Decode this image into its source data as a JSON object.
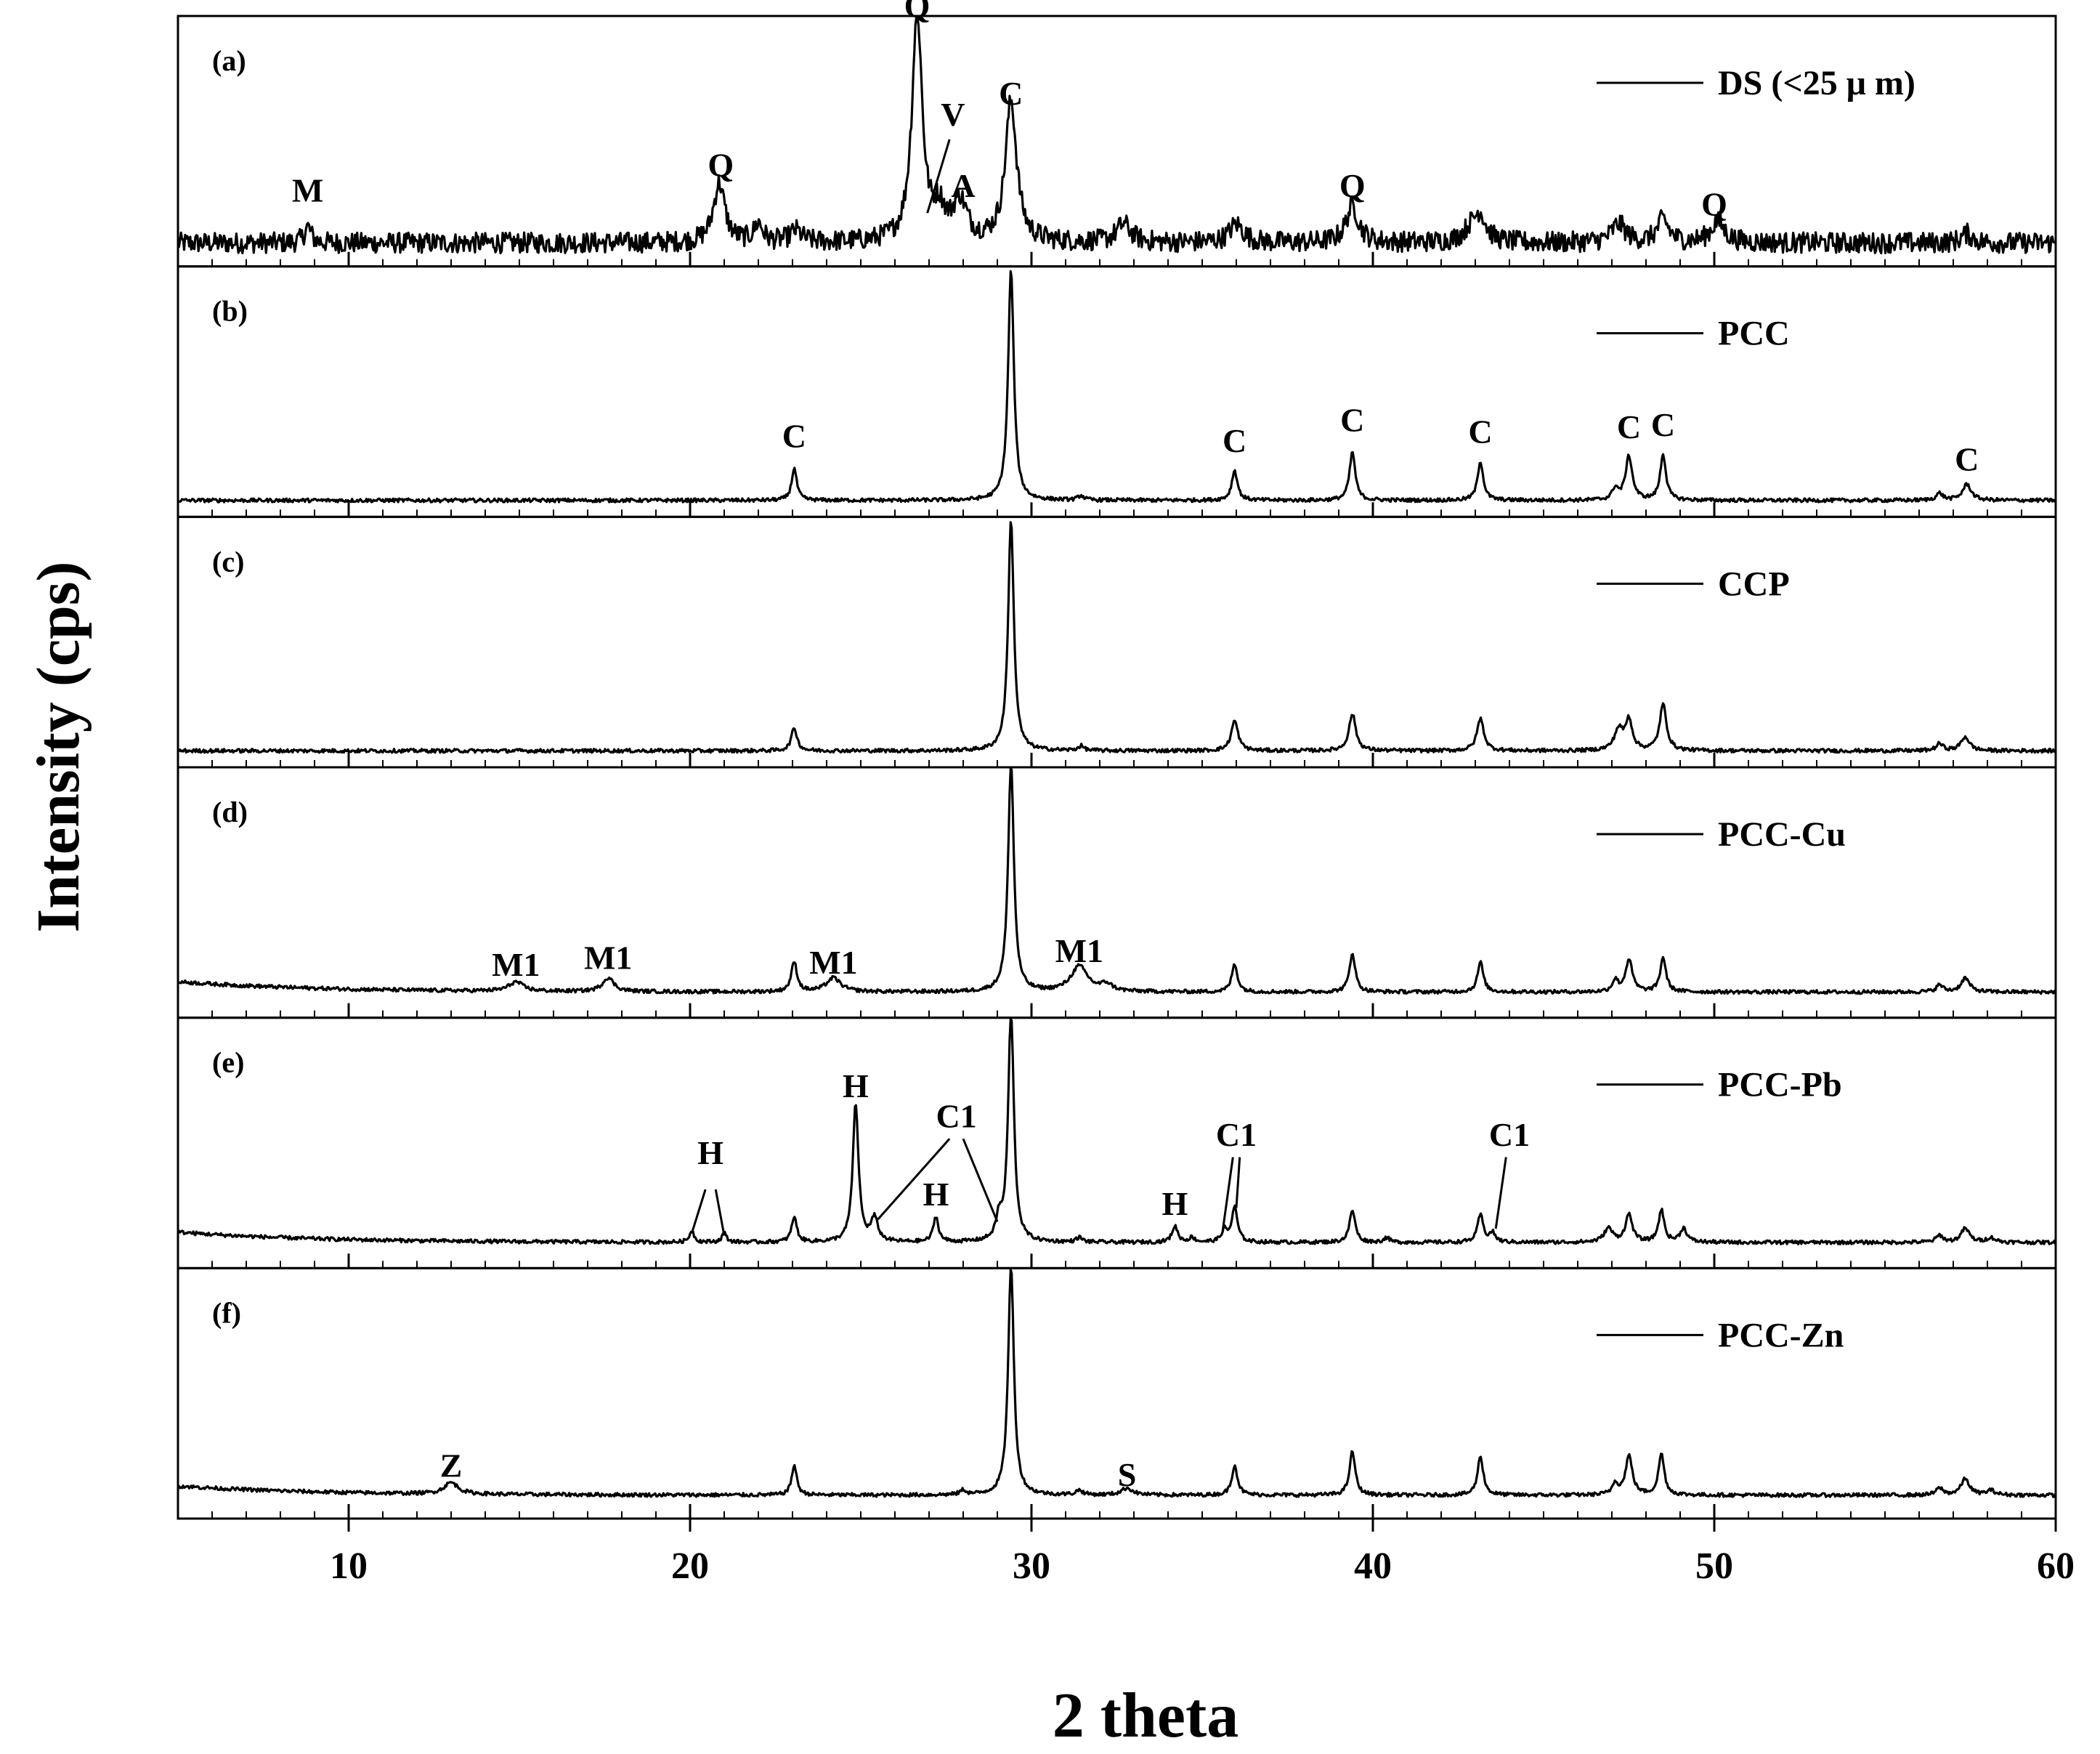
{
  "chart_data": {
    "type": "line",
    "xlabel": "2 theta",
    "ylabel": "Intensity (cps)",
    "xlim": [
      5,
      60
    ],
    "x_ticks": [
      "10",
      "20",
      "30",
      "40",
      "50",
      "60"
    ],
    "x_tick_values": [
      10,
      20,
      30,
      40,
      50,
      60
    ],
    "minor_x_step": 1,
    "legend_position": "top-right",
    "grid": false,
    "line_color": "#000000",
    "panels": [
      {
        "letter": "(a)",
        "name": "DS (<25 μ m)",
        "noise": 0.045,
        "baseline": [
          0.07,
          0.0
        ],
        "peaks": [
          [
            8.8,
            0.07,
            0.12
          ],
          [
            20.85,
            0.26,
            0.2
          ],
          [
            22.0,
            0.08,
            0.15
          ],
          [
            23.1,
            0.05,
            0.2
          ],
          [
            26.65,
            1.0,
            0.18
          ],
          [
            27.3,
            0.12,
            0.2
          ],
          [
            27.9,
            0.17,
            0.25
          ],
          [
            29.4,
            0.61,
            0.2
          ],
          [
            32.7,
            0.08,
            0.25
          ],
          [
            36.0,
            0.08,
            0.25
          ],
          [
            39.4,
            0.16,
            0.22
          ],
          [
            42.9,
            0.06,
            0.3
          ],
          [
            43.15,
            0.1,
            0.2
          ],
          [
            47.2,
            0.08,
            0.25
          ],
          [
            48.5,
            0.1,
            0.2
          ],
          [
            50.1,
            0.09,
            0.25
          ],
          [
            57.4,
            0.04,
            0.2
          ]
        ],
        "labels": [
          {
            "text": "M",
            "x": 8.8,
            "level": 0.25
          },
          {
            "text": "Q",
            "x": 20.9,
            "level": 0.36
          },
          {
            "text": "Q",
            "x": 26.65,
            "level": 1.05
          },
          {
            "text": "V",
            "x": 27.7,
            "level": 0.58
          },
          {
            "text": "A",
            "x": 28.0,
            "level": 0.27
          },
          {
            "text": "C",
            "x": 29.4,
            "level": 0.67
          },
          {
            "text": "Q",
            "x": 39.4,
            "level": 0.27
          },
          {
            "text": "Q",
            "x": 50.0,
            "level": 0.19
          }
        ],
        "leaders": [
          {
            "x1": 27.6,
            "l1": 0.52,
            "x2": 26.95,
            "l2": 0.2
          }
        ]
      },
      {
        "letter": "(b)",
        "name": "PCC",
        "noise": 0.008,
        "baseline": [
          0.04,
          0.0
        ],
        "peaks": [
          [
            23.05,
            0.14,
            0.09
          ],
          [
            29.4,
            1.0,
            0.1
          ],
          [
            31.45,
            0.02,
            0.1
          ],
          [
            35.95,
            0.13,
            0.1
          ],
          [
            39.4,
            0.21,
            0.1
          ],
          [
            43.15,
            0.17,
            0.1
          ],
          [
            47.1,
            0.05,
            0.1
          ],
          [
            47.5,
            0.19,
            0.12
          ],
          [
            48.5,
            0.2,
            0.1
          ],
          [
            56.6,
            0.03,
            0.12
          ],
          [
            57.4,
            0.07,
            0.15
          ]
        ],
        "labels": [
          {
            "text": "C",
            "x": 23.05,
            "level": 0.27
          },
          {
            "text": "C",
            "x": 35.95,
            "level": 0.25
          },
          {
            "text": "C",
            "x": 39.4,
            "level": 0.34
          },
          {
            "text": "C",
            "x": 43.15,
            "level": 0.29
          },
          {
            "text": "C",
            "x": 47.5,
            "level": 0.31
          },
          {
            "text": "C",
            "x": 48.5,
            "level": 0.32
          },
          {
            "text": "C",
            "x": 57.4,
            "level": 0.17
          }
        ],
        "leaders": []
      },
      {
        "letter": "(c)",
        "name": "CCP",
        "noise": 0.008,
        "baseline": [
          0.04,
          0.0
        ],
        "peaks": [
          [
            23.05,
            0.1,
            0.1
          ],
          [
            29.4,
            1.0,
            0.1
          ],
          [
            31.45,
            0.02,
            0.1
          ],
          [
            35.95,
            0.13,
            0.12
          ],
          [
            39.4,
            0.16,
            0.12
          ],
          [
            43.15,
            0.14,
            0.12
          ],
          [
            47.2,
            0.09,
            0.15
          ],
          [
            47.5,
            0.13,
            0.12
          ],
          [
            48.5,
            0.2,
            0.12
          ],
          [
            56.6,
            0.03,
            0.12
          ],
          [
            57.35,
            0.06,
            0.15
          ]
        ],
        "labels": [],
        "leaders": []
      },
      {
        "letter": "(d)",
        "name": "PCC-Cu",
        "noise": 0.008,
        "baseline": [
          0.08,
          0.045
        ],
        "peaks": [
          [
            14.9,
            0.04,
            0.25
          ],
          [
            17.6,
            0.06,
            0.2
          ],
          [
            23.05,
            0.13,
            0.1
          ],
          [
            24.2,
            0.06,
            0.25
          ],
          [
            29.4,
            1.0,
            0.1
          ],
          [
            31.4,
            0.11,
            0.3
          ],
          [
            32.2,
            0.03,
            0.2
          ],
          [
            35.95,
            0.12,
            0.1
          ],
          [
            39.4,
            0.17,
            0.1
          ],
          [
            43.15,
            0.13,
            0.1
          ],
          [
            47.1,
            0.05,
            0.1
          ],
          [
            47.5,
            0.14,
            0.12
          ],
          [
            48.5,
            0.15,
            0.1
          ],
          [
            56.6,
            0.03,
            0.12
          ],
          [
            57.35,
            0.06,
            0.15
          ]
        ],
        "labels": [
          {
            "text": "M1",
            "x": 14.9,
            "level": 0.15
          },
          {
            "text": "M1",
            "x": 17.6,
            "level": 0.18
          },
          {
            "text": "M1",
            "x": 24.2,
            "level": 0.16
          },
          {
            "text": "M1",
            "x": 31.4,
            "level": 0.21
          }
        ],
        "leaders": []
      },
      {
        "letter": "(e)",
        "name": "PCC-Pb",
        "noise": 0.008,
        "baseline": [
          0.08,
          0.045
        ],
        "peaks": [
          [
            20.05,
            0.05,
            0.08
          ],
          [
            21.0,
            0.04,
            0.08
          ],
          [
            23.05,
            0.11,
            0.09
          ],
          [
            24.85,
            0.6,
            0.1
          ],
          [
            25.4,
            0.1,
            0.12
          ],
          [
            27.2,
            0.11,
            0.09
          ],
          [
            29.05,
            0.09,
            0.1
          ],
          [
            29.4,
            1.0,
            0.1
          ],
          [
            31.4,
            0.02,
            0.1
          ],
          [
            34.2,
            0.07,
            0.1
          ],
          [
            34.7,
            0.02,
            0.1
          ],
          [
            35.65,
            0.05,
            0.1
          ],
          [
            35.95,
            0.15,
            0.1
          ],
          [
            39.4,
            0.14,
            0.1
          ],
          [
            40.4,
            0.02,
            0.1
          ],
          [
            43.15,
            0.12,
            0.1
          ],
          [
            43.5,
            0.04,
            0.1
          ],
          [
            46.9,
            0.06,
            0.15
          ],
          [
            47.5,
            0.12,
            0.12
          ],
          [
            48.45,
            0.14,
            0.1
          ],
          [
            49.1,
            0.06,
            0.12
          ],
          [
            56.6,
            0.03,
            0.12
          ],
          [
            57.35,
            0.06,
            0.15
          ],
          [
            58.1,
            0.02,
            0.15
          ]
        ],
        "labels": [
          {
            "text": "H",
            "x": 20.6,
            "level": 0.42
          },
          {
            "text": "H",
            "x": 24.85,
            "level": 0.71
          },
          {
            "text": "C1",
            "x": 27.8,
            "level": 0.58
          },
          {
            "text": "H",
            "x": 27.2,
            "level": 0.24
          },
          {
            "text": "H",
            "x": 34.2,
            "level": 0.2
          },
          {
            "text": "C1",
            "x": 36.0,
            "level": 0.5
          },
          {
            "text": "C1",
            "x": 44.0,
            "level": 0.5
          }
        ],
        "leaders": [
          {
            "x1": 20.45,
            "l1": 0.31,
            "x2": 20.05,
            "l2": 0.12
          },
          {
            "x1": 20.75,
            "l1": 0.31,
            "x2": 21.0,
            "l2": 0.11
          },
          {
            "x1": 27.6,
            "l1": 0.53,
            "x2": 25.5,
            "l2": 0.18
          },
          {
            "x1": 28.0,
            "l1": 0.53,
            "x2": 29.0,
            "l2": 0.17
          },
          {
            "x1": 35.9,
            "l1": 0.45,
            "x2": 35.6,
            "l2": 0.13
          },
          {
            "x1": 36.1,
            "l1": 0.45,
            "x2": 36.0,
            "l2": 0.23
          },
          {
            "x1": 43.9,
            "l1": 0.45,
            "x2": 43.6,
            "l2": 0.14
          }
        ]
      },
      {
        "letter": "(f)",
        "name": "PCC-Zn",
        "noise": 0.008,
        "baseline": [
          0.07,
          0.04
        ],
        "peaks": [
          [
            13.0,
            0.05,
            0.25
          ],
          [
            23.05,
            0.13,
            0.09
          ],
          [
            28.0,
            0.02,
            0.1
          ],
          [
            29.4,
            1.0,
            0.1
          ],
          [
            31.4,
            0.02,
            0.12
          ],
          [
            32.8,
            0.03,
            0.2
          ],
          [
            35.95,
            0.13,
            0.1
          ],
          [
            39.4,
            0.19,
            0.1
          ],
          [
            43.15,
            0.17,
            0.1
          ],
          [
            47.1,
            0.05,
            0.1
          ],
          [
            47.5,
            0.17,
            0.12
          ],
          [
            48.45,
            0.18,
            0.1
          ],
          [
            56.6,
            0.03,
            0.12
          ],
          [
            57.35,
            0.07,
            0.15
          ],
          [
            58.1,
            0.02,
            0.15
          ]
        ],
        "labels": [
          {
            "text": "Z",
            "x": 13.0,
            "level": 0.15
          },
          {
            "text": "S",
            "x": 32.8,
            "level": 0.11
          }
        ],
        "leaders": []
      }
    ]
  }
}
